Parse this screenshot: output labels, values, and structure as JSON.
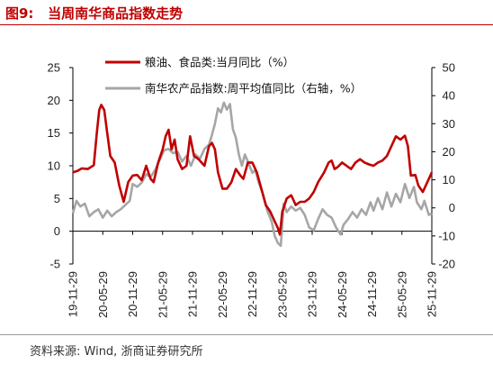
{
  "header": {
    "figure_label": "图9:",
    "figure_title": "当周南华商品指数走势"
  },
  "footer": {
    "source": "资料来源:  Wind, 浙商证券研究所"
  },
  "chart_data": {
    "type": "line",
    "x_ticks": [
      "19-11-29",
      "20-05-29",
      "20-11-29",
      "21-05-29",
      "21-11-29",
      "22-05-29",
      "22-11-29",
      "23-05-29",
      "23-11-29",
      "24-05-29",
      "24-11-29",
      "25-05-29",
      "25-11-29"
    ],
    "left_axis": {
      "ylim": [
        -5,
        25
      ],
      "ticks": [
        -5,
        0,
        5,
        10,
        15,
        20,
        25
      ]
    },
    "right_axis": {
      "ylim": [
        -20,
        50
      ],
      "ticks": [
        -20,
        -10,
        0,
        10,
        20,
        30,
        40,
        50
      ]
    },
    "legend_placement": "top-center",
    "series": [
      {
        "name": "粮油、食品类:当月同比（%）",
        "axis": "left",
        "color": "#c00000",
        "points": [
          [
            0.0,
            9.0
          ],
          [
            0.15,
            9.2
          ],
          [
            0.3,
            9.6
          ],
          [
            0.5,
            9.5
          ],
          [
            0.7,
            10.1
          ],
          [
            0.8,
            15.0
          ],
          [
            0.88,
            18.5
          ],
          [
            0.95,
            19.3
          ],
          [
            1.05,
            18.5
          ],
          [
            1.15,
            15.0
          ],
          [
            1.25,
            11.5
          ],
          [
            1.4,
            10.5
          ],
          [
            1.55,
            7.0
          ],
          [
            1.7,
            4.5
          ],
          [
            1.85,
            7.5
          ],
          [
            2.0,
            8.5
          ],
          [
            2.15,
            8.6
          ],
          [
            2.3,
            7.8
          ],
          [
            2.45,
            10.0
          ],
          [
            2.6,
            8.0
          ],
          [
            2.7,
            7.5
          ],
          [
            2.85,
            10.5
          ],
          [
            3.0,
            12.5
          ],
          [
            3.1,
            14.5
          ],
          [
            3.2,
            15.5
          ],
          [
            3.3,
            12.5
          ],
          [
            3.4,
            14.0
          ],
          [
            3.5,
            11.0
          ],
          [
            3.65,
            9.5
          ],
          [
            3.8,
            10.0
          ],
          [
            3.92,
            14.5
          ],
          [
            4.05,
            11.5
          ],
          [
            4.2,
            11.0
          ],
          [
            4.4,
            10.0
          ],
          [
            4.55,
            13.0
          ],
          [
            4.65,
            13.5
          ],
          [
            4.75,
            12.5
          ],
          [
            4.85,
            9.0
          ],
          [
            5.0,
            6.5
          ],
          [
            5.15,
            6.5
          ],
          [
            5.3,
            7.5
          ],
          [
            5.45,
            9.5
          ],
          [
            5.6,
            8.5
          ],
          [
            5.7,
            8.0
          ],
          [
            5.85,
            10.5
          ],
          [
            6.0,
            10.5
          ],
          [
            6.15,
            9.0
          ],
          [
            6.3,
            6.5
          ],
          [
            6.45,
            4.0
          ],
          [
            6.6,
            3.0
          ],
          [
            6.75,
            1.5
          ],
          [
            6.85,
            0.5
          ],
          [
            6.92,
            -0.5
          ],
          [
            7.0,
            3.0
          ],
          [
            7.15,
            5.0
          ],
          [
            7.3,
            5.5
          ],
          [
            7.45,
            4.0
          ],
          [
            7.6,
            4.5
          ],
          [
            7.75,
            4.5
          ],
          [
            7.9,
            5.0
          ],
          [
            8.05,
            6.0
          ],
          [
            8.2,
            7.5
          ],
          [
            8.4,
            9.0
          ],
          [
            8.55,
            10.5
          ],
          [
            8.65,
            10.8
          ],
          [
            8.75,
            9.5
          ],
          [
            8.85,
            9.8
          ],
          [
            9.0,
            10.5
          ],
          [
            9.15,
            10.0
          ],
          [
            9.3,
            9.5
          ],
          [
            9.45,
            10.5
          ],
          [
            9.6,
            11.0
          ],
          [
            9.75,
            10.5
          ],
          [
            9.9,
            10.2
          ],
          [
            10.05,
            10.0
          ],
          [
            10.2,
            10.5
          ],
          [
            10.35,
            10.8
          ],
          [
            10.5,
            11.5
          ],
          [
            10.65,
            13.0
          ],
          [
            10.8,
            14.5
          ],
          [
            10.95,
            14.0
          ],
          [
            11.1,
            14.6
          ],
          [
            11.2,
            13.0
          ],
          [
            11.3,
            8.5
          ],
          [
            11.45,
            8.6
          ],
          [
            11.55,
            7.0
          ],
          [
            11.7,
            6.0
          ],
          [
            11.85,
            7.5
          ],
          [
            12.0,
            9.0
          ]
        ]
      },
      {
        "name": "南华农产品指数:周平均值同比（右轴，%）",
        "axis": "right",
        "color": "#a6a6a6",
        "points": [
          [
            0.0,
            -2.0
          ],
          [
            0.12,
            2.5
          ],
          [
            0.25,
            0.5
          ],
          [
            0.4,
            1.5
          ],
          [
            0.55,
            -3.0
          ],
          [
            0.7,
            -1.5
          ],
          [
            0.85,
            -0.5
          ],
          [
            1.0,
            -3.5
          ],
          [
            1.15,
            -1.0
          ],
          [
            1.3,
            -3.0
          ],
          [
            1.45,
            -1.5
          ],
          [
            1.6,
            -0.5
          ],
          [
            1.75,
            1.0
          ],
          [
            1.9,
            2.5
          ],
          [
            2.0,
            8.5
          ],
          [
            2.15,
            7.5
          ],
          [
            2.3,
            9.0
          ],
          [
            2.45,
            12.0
          ],
          [
            2.6,
            11.0
          ],
          [
            2.75,
            13.5
          ],
          [
            2.9,
            17.0
          ],
          [
            3.05,
            20.5
          ],
          [
            3.2,
            21.0
          ],
          [
            3.35,
            19.5
          ],
          [
            3.5,
            20.0
          ],
          [
            3.65,
            16.5
          ],
          [
            3.8,
            18.5
          ],
          [
            3.95,
            15.0
          ],
          [
            4.1,
            19.0
          ],
          [
            4.25,
            17.5
          ],
          [
            4.4,
            21.0
          ],
          [
            4.55,
            22.5
          ],
          [
            4.65,
            26.0
          ],
          [
            4.75,
            30.0
          ],
          [
            4.85,
            35.5
          ],
          [
            4.95,
            34.0
          ],
          [
            5.05,
            37.5
          ],
          [
            5.15,
            35.0
          ],
          [
            5.25,
            37.0
          ],
          [
            5.35,
            28.0
          ],
          [
            5.45,
            25.0
          ],
          [
            5.55,
            19.0
          ],
          [
            5.65,
            15.0
          ],
          [
            5.75,
            19.0
          ],
          [
            5.85,
            16.5
          ],
          [
            6.0,
            12.5
          ],
          [
            6.1,
            13.5
          ],
          [
            6.2,
            9.5
          ],
          [
            6.35,
            5.0
          ],
          [
            6.5,
            -1.0
          ],
          [
            6.65,
            -5.0
          ],
          [
            6.75,
            -10.0
          ],
          [
            6.85,
            -12.5
          ],
          [
            6.95,
            -13.5
          ],
          [
            7.05,
            1.5
          ],
          [
            7.15,
            -1.5
          ],
          [
            7.3,
            0.5
          ],
          [
            7.45,
            -1.0
          ],
          [
            7.6,
            0.0
          ],
          [
            7.75,
            -2.5
          ],
          [
            7.9,
            -7.0
          ],
          [
            8.05,
            -8.0
          ],
          [
            8.2,
            -4.0
          ],
          [
            8.35,
            -0.5
          ],
          [
            8.5,
            -2.5
          ],
          [
            8.65,
            -3.5
          ],
          [
            8.8,
            -7.0
          ],
          [
            8.95,
            -9.5
          ],
          [
            9.05,
            -6.0
          ],
          [
            9.2,
            -4.0
          ],
          [
            9.35,
            -1.5
          ],
          [
            9.5,
            -3.5
          ],
          [
            9.65,
            -0.5
          ],
          [
            9.8,
            -2.5
          ],
          [
            9.95,
            2.0
          ],
          [
            10.05,
            -1.0
          ],
          [
            10.2,
            3.5
          ],
          [
            10.35,
            -0.5
          ],
          [
            10.5,
            5.5
          ],
          [
            10.65,
            0.5
          ],
          [
            10.8,
            5.0
          ],
          [
            10.95,
            2.0
          ],
          [
            11.1,
            8.5
          ],
          [
            11.25,
            3.5
          ],
          [
            11.4,
            7.5
          ],
          [
            11.5,
            2.0
          ],
          [
            11.65,
            -0.5
          ],
          [
            11.75,
            2.5
          ],
          [
            11.9,
            -2.5
          ],
          [
            12.0,
            -2.0
          ]
        ]
      }
    ]
  }
}
